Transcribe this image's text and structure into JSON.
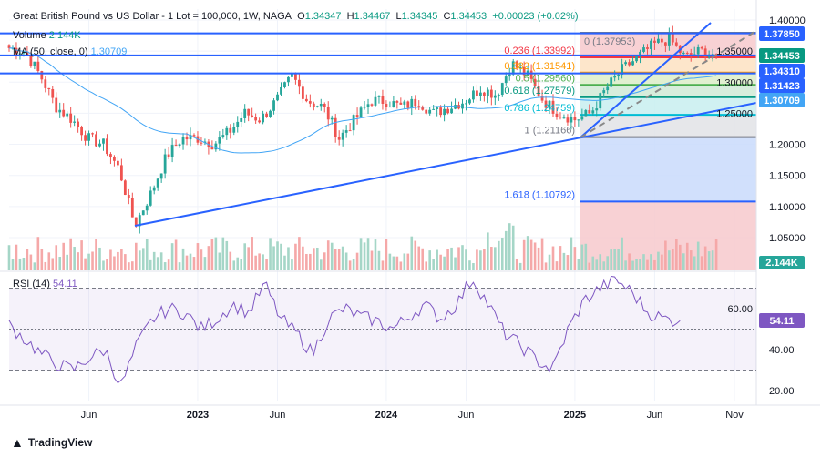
{
  "header": {
    "title": "Great British Pound vs US Dollar - 1 Lot = 100,000, 1W, NAGA",
    "open_label": "O",
    "open": "1.34347",
    "high_label": "H",
    "high": "1.34467",
    "low_label": "L",
    "low": "1.34345",
    "close_label": "C",
    "close": "1.34453",
    "change": "+0.00023 (+0.02%)"
  },
  "indicators": {
    "volume_label": "Volume",
    "volume_value": "2.144K",
    "ma_label": "MA (50, close, 0)",
    "ma_value": "1.30709",
    "rsi_label": "RSI (14)",
    "rsi_value": "54.11"
  },
  "brand": "TradingView",
  "colors": {
    "up": "#26a69a",
    "down": "#ef5350",
    "line": "#2962ff",
    "ma": "#42a5f5",
    "rsi": "#7e57c2"
  },
  "chart_data": {
    "type": "candlestick",
    "title": "Great British Pound vs US Dollar, 1W",
    "ylim": [
      1.02,
      1.41
    ],
    "y_ticks": [
      "1.40000",
      "1.35000",
      "1.30000",
      "1.25000",
      "1.20000",
      "1.15000",
      "1.10000",
      "1.05000"
    ],
    "y_tick_values": [
      1.4,
      1.35,
      1.3,
      1.25,
      1.2,
      1.15,
      1.1,
      1.05
    ],
    "x_ticks": [
      "Jun",
      "2023",
      "Jun",
      "2024",
      "Jun",
      "2025",
      "Jun",
      "Nov"
    ],
    "x_tick_weeks": [
      22,
      52,
      74,
      104,
      126,
      156,
      178,
      200
    ],
    "monthly_close_anchors": [
      1.355,
      1.35,
      1.31,
      1.26,
      1.24,
      1.21,
      1.2,
      1.16,
      1.07,
      1.12,
      1.18,
      1.21,
      1.21,
      1.2,
      1.22,
      1.25,
      1.24,
      1.27,
      1.31,
      1.27,
      1.26,
      1.21,
      1.24,
      1.27,
      1.27,
      1.26,
      1.27,
      1.25,
      1.26,
      1.27,
      1.29,
      1.28,
      1.33,
      1.31,
      1.27,
      1.25,
      1.24,
      1.25,
      1.29,
      1.32,
      1.34,
      1.36,
      1.37,
      1.34,
      1.35,
      1.345
    ],
    "price_labels": [
      {
        "text": "1.37850",
        "value": 1.3785,
        "color": "#2962ff"
      },
      {
        "text": "1.34453",
        "value": 1.34453,
        "color": "#089981"
      },
      {
        "text": "1.34310",
        "value": 1.3431,
        "color": "#2962ff"
      },
      {
        "text": "1.31423",
        "value": 1.31423,
        "color": "#2962ff"
      },
      {
        "text": "1.30709",
        "value": 1.30709,
        "color": "#42a5f5"
      }
    ],
    "horizontal_lines": [
      1.3785,
      1.3431,
      1.31423
    ],
    "fib": [
      {
        "label": "0 (1.37953)",
        "value": 1.37953,
        "color": "#787b86",
        "fill": "#f7c9cc"
      },
      {
        "label": "0.236 (1.33992)",
        "value": 1.33992,
        "color": "#f23645",
        "fill": "#fde2c2"
      },
      {
        "label": "0.382 (1.31541)",
        "value": 1.31541,
        "color": "#ff9800",
        "fill": "#dcedc8"
      },
      {
        "label": "0.5 (1.29560)",
        "value": 1.2956,
        "color": "#4caf50",
        "fill": "#d0ead6"
      },
      {
        "label": "0.618 (1.27579)",
        "value": 1.27579,
        "color": "#089981",
        "fill": "#c8eef0"
      },
      {
        "label": "0.786 (1.24759)",
        "value": 1.24759,
        "color": "#00bcd4",
        "fill": "#e2e3e6"
      },
      {
        "label": "1 (1.21166)",
        "value": 1.21166,
        "color": "#787b86",
        "fill": "#c9dafc"
      },
      {
        "label": "1.618 (1.10792)",
        "value": 1.10792,
        "color": "#2962ff",
        "fill": "#f7c9cc"
      }
    ],
    "rsi": {
      "ylim": [
        15,
        78
      ],
      "levels": [
        70,
        50,
        30
      ],
      "y_ticks": [
        "60.00",
        "40.00",
        "20.00"
      ],
      "y_tick_values": [
        60,
        40,
        20
      ],
      "monthly_anchors": [
        52,
        45,
        38,
        33,
        30,
        36,
        40,
        22,
        42,
        55,
        60,
        58,
        50,
        55,
        62,
        58,
        72,
        55,
        48,
        38,
        55,
        60,
        56,
        54,
        50,
        56,
        62,
        55,
        62,
        75,
        62,
        48,
        42,
        35,
        30,
        50,
        64,
        70,
        74,
        68,
        58,
        55,
        54
      ]
    }
  }
}
